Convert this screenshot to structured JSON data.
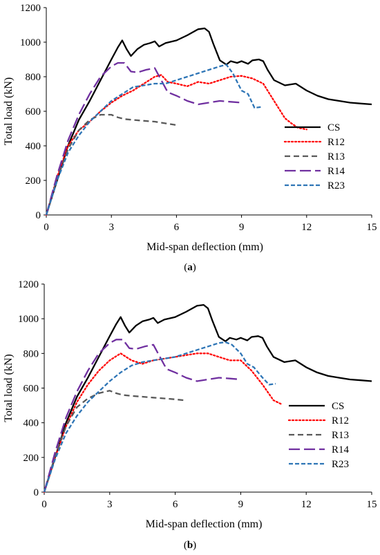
{
  "chart_data": [
    {
      "type": "line",
      "panel_label": "a",
      "xlabel": "Mid-span deflection (mm)",
      "ylabel": "Total load (kN)",
      "xlim": [
        0,
        15
      ],
      "ylim": [
        0,
        1200
      ],
      "xticks": [
        0,
        3,
        6,
        9,
        12,
        15
      ],
      "yticks": [
        0,
        200,
        400,
        600,
        800,
        1000,
        1200
      ],
      "grid": false,
      "legend": "right",
      "series": [
        {
          "name": "CS",
          "color": "#000000",
          "dash": "solid",
          "x": [
            0,
            0.5,
            1,
            1.5,
            2,
            2.5,
            3,
            3.3,
            3.5,
            3.7,
            3.9,
            4.2,
            4.5,
            4.8,
            5.0,
            5.2,
            5.5,
            6.0,
            6.5,
            7.0,
            7.3,
            7.5,
            7.7,
            8.0,
            8.3,
            8.5,
            8.8,
            9.0,
            9.3,
            9.5,
            9.8,
            10.0,
            10.2,
            10.5,
            11.0,
            11.5,
            12.0,
            12.5,
            13.0,
            13.5,
            14.0,
            14.5,
            15.0
          ],
          "y": [
            0,
            200,
            400,
            550,
            660,
            780,
            900,
            970,
            1010,
            960,
            920,
            960,
            985,
            995,
            1005,
            975,
            995,
            1010,
            1040,
            1075,
            1080,
            1060,
            990,
            895,
            870,
            890,
            880,
            890,
            875,
            895,
            900,
            890,
            840,
            780,
            750,
            760,
            720,
            690,
            670,
            660,
            650,
            645,
            640
          ]
        },
        {
          "name": "R12",
          "color": "#ff0000",
          "dash": "dot",
          "x": [
            0,
            0.5,
            1,
            1.5,
            2,
            2.5,
            3,
            3.5,
            4,
            4.5,
            5,
            5.3,
            5.6,
            6,
            6.5,
            7,
            7.5,
            8,
            8.5,
            9,
            9.5,
            10,
            10.3,
            10.6,
            11,
            11.3,
            11.6,
            12.0
          ],
          "y": [
            0,
            220,
            400,
            490,
            540,
            600,
            650,
            690,
            720,
            760,
            800,
            810,
            770,
            760,
            745,
            770,
            760,
            780,
            800,
            805,
            790,
            760,
            700,
            640,
            560,
            530,
            505,
            495
          ]
        },
        {
          "name": "R13",
          "color": "#595959",
          "dash": "dash",
          "x": [
            0,
            0.5,
            1,
            1.5,
            2,
            2.5,
            3,
            3.3,
            3.6,
            4,
            4.5,
            5,
            5.5,
            6
          ],
          "y": [
            0,
            210,
            380,
            490,
            550,
            580,
            580,
            565,
            555,
            550,
            545,
            540,
            530,
            520
          ]
        },
        {
          "name": "R14",
          "color": "#7030a0",
          "dash": "longdash",
          "x": [
            0,
            0.5,
            1,
            1.5,
            2,
            2.5,
            3,
            3.3,
            3.6,
            3.9,
            4.2,
            4.6,
            5.0,
            5.3,
            5.6,
            6,
            6.5,
            7,
            7.5,
            8,
            8.5,
            9
          ],
          "y": [
            0,
            230,
            430,
            580,
            700,
            800,
            860,
            880,
            880,
            830,
            825,
            840,
            850,
            780,
            710,
            690,
            660,
            640,
            650,
            660,
            655,
            650
          ]
        },
        {
          "name": "R23",
          "color": "#2e75b6",
          "dash": "shortdash",
          "x": [
            0,
            0.5,
            1,
            1.5,
            2,
            2.5,
            3,
            3.5,
            4,
            4.5,
            5,
            5.5,
            6,
            6.5,
            7,
            7.5,
            8,
            8.3,
            8.6,
            9.0,
            9.3,
            9.6,
            9.9
          ],
          "y": [
            0,
            200,
            360,
            460,
            540,
            600,
            660,
            700,
            740,
            750,
            760,
            760,
            780,
            800,
            820,
            840,
            860,
            870,
            820,
            720,
            700,
            620,
            625
          ]
        }
      ]
    },
    {
      "type": "line",
      "panel_label": "b",
      "xlabel": "Mid-span deflection (mm)",
      "ylabel": "Total load (kN)",
      "xlim": [
        0,
        15
      ],
      "ylim": [
        0,
        1200
      ],
      "xticks": [
        0,
        3,
        6,
        9,
        12,
        15
      ],
      "yticks": [
        0,
        200,
        400,
        600,
        800,
        1000,
        1200
      ],
      "grid": false,
      "legend": "right",
      "series": [
        {
          "name": "CS",
          "color": "#000000",
          "dash": "solid",
          "x": [
            0,
            0.5,
            1,
            1.5,
            2,
            2.5,
            3,
            3.3,
            3.5,
            3.7,
            3.9,
            4.2,
            4.5,
            4.8,
            5.0,
            5.2,
            5.5,
            6.0,
            6.5,
            7.0,
            7.3,
            7.5,
            7.7,
            8.0,
            8.3,
            8.5,
            8.8,
            9.0,
            9.3,
            9.5,
            9.8,
            10.0,
            10.2,
            10.5,
            11.0,
            11.5,
            12.0,
            12.5,
            13.0,
            13.5,
            14.0,
            14.5,
            15.0
          ],
          "y": [
            0,
            200,
            400,
            550,
            660,
            780,
            900,
            970,
            1010,
            960,
            920,
            960,
            985,
            995,
            1005,
            975,
            995,
            1010,
            1040,
            1075,
            1080,
            1060,
            990,
            895,
            870,
            890,
            880,
            890,
            875,
            895,
            900,
            890,
            840,
            780,
            750,
            760,
            720,
            690,
            670,
            660,
            650,
            645,
            640
          ]
        },
        {
          "name": "R12",
          "color": "#ff0000",
          "dash": "dot",
          "x": [
            0,
            0.5,
            1,
            1.5,
            2,
            2.5,
            3,
            3.5,
            4,
            4.5,
            5,
            5.5,
            6,
            6.5,
            7,
            7.5,
            8,
            8.5,
            9,
            9.5,
            10,
            10.5,
            10.9
          ],
          "y": [
            0,
            200,
            380,
            520,
            620,
            700,
            760,
            800,
            760,
            740,
            760,
            770,
            780,
            790,
            800,
            800,
            780,
            760,
            760,
            700,
            620,
            530,
            505
          ]
        },
        {
          "name": "R13",
          "color": "#595959",
          "dash": "dash",
          "x": [
            0,
            0.5,
            1,
            1.5,
            2,
            2.5,
            2.8,
            3.0,
            3.3,
            3.6,
            4,
            4.5,
            5,
            5.5,
            6,
            6.4
          ],
          "y": [
            0,
            210,
            380,
            490,
            540,
            570,
            580,
            585,
            570,
            560,
            555,
            550,
            545,
            540,
            535,
            530
          ]
        },
        {
          "name": "R14",
          "color": "#7030a0",
          "dash": "longdash",
          "x": [
            0,
            0.5,
            1,
            1.5,
            2,
            2.5,
            3,
            3.3,
            3.6,
            3.9,
            4.2,
            4.6,
            5.0,
            5.3,
            5.6,
            6,
            6.5,
            7,
            7.5,
            8,
            8.5,
            9
          ],
          "y": [
            0,
            230,
            430,
            580,
            700,
            800,
            860,
            880,
            880,
            830,
            825,
            840,
            850,
            780,
            710,
            690,
            660,
            640,
            650,
            660,
            655,
            650
          ]
        },
        {
          "name": "R23",
          "color": "#2e75b6",
          "dash": "shortdash",
          "x": [
            0,
            0.5,
            1,
            1.5,
            2,
            2.5,
            3,
            3.5,
            4,
            4.5,
            5,
            5.5,
            6,
            6.5,
            7,
            7.5,
            8,
            8.3,
            8.6,
            9.0,
            9.3,
            9.6,
            10.0,
            10.3,
            10.6
          ],
          "y": [
            0,
            190,
            340,
            440,
            520,
            580,
            640,
            690,
            730,
            750,
            760,
            770,
            780,
            800,
            820,
            840,
            860,
            865,
            850,
            800,
            740,
            720,
            660,
            620,
            625
          ]
        }
      ]
    }
  ]
}
